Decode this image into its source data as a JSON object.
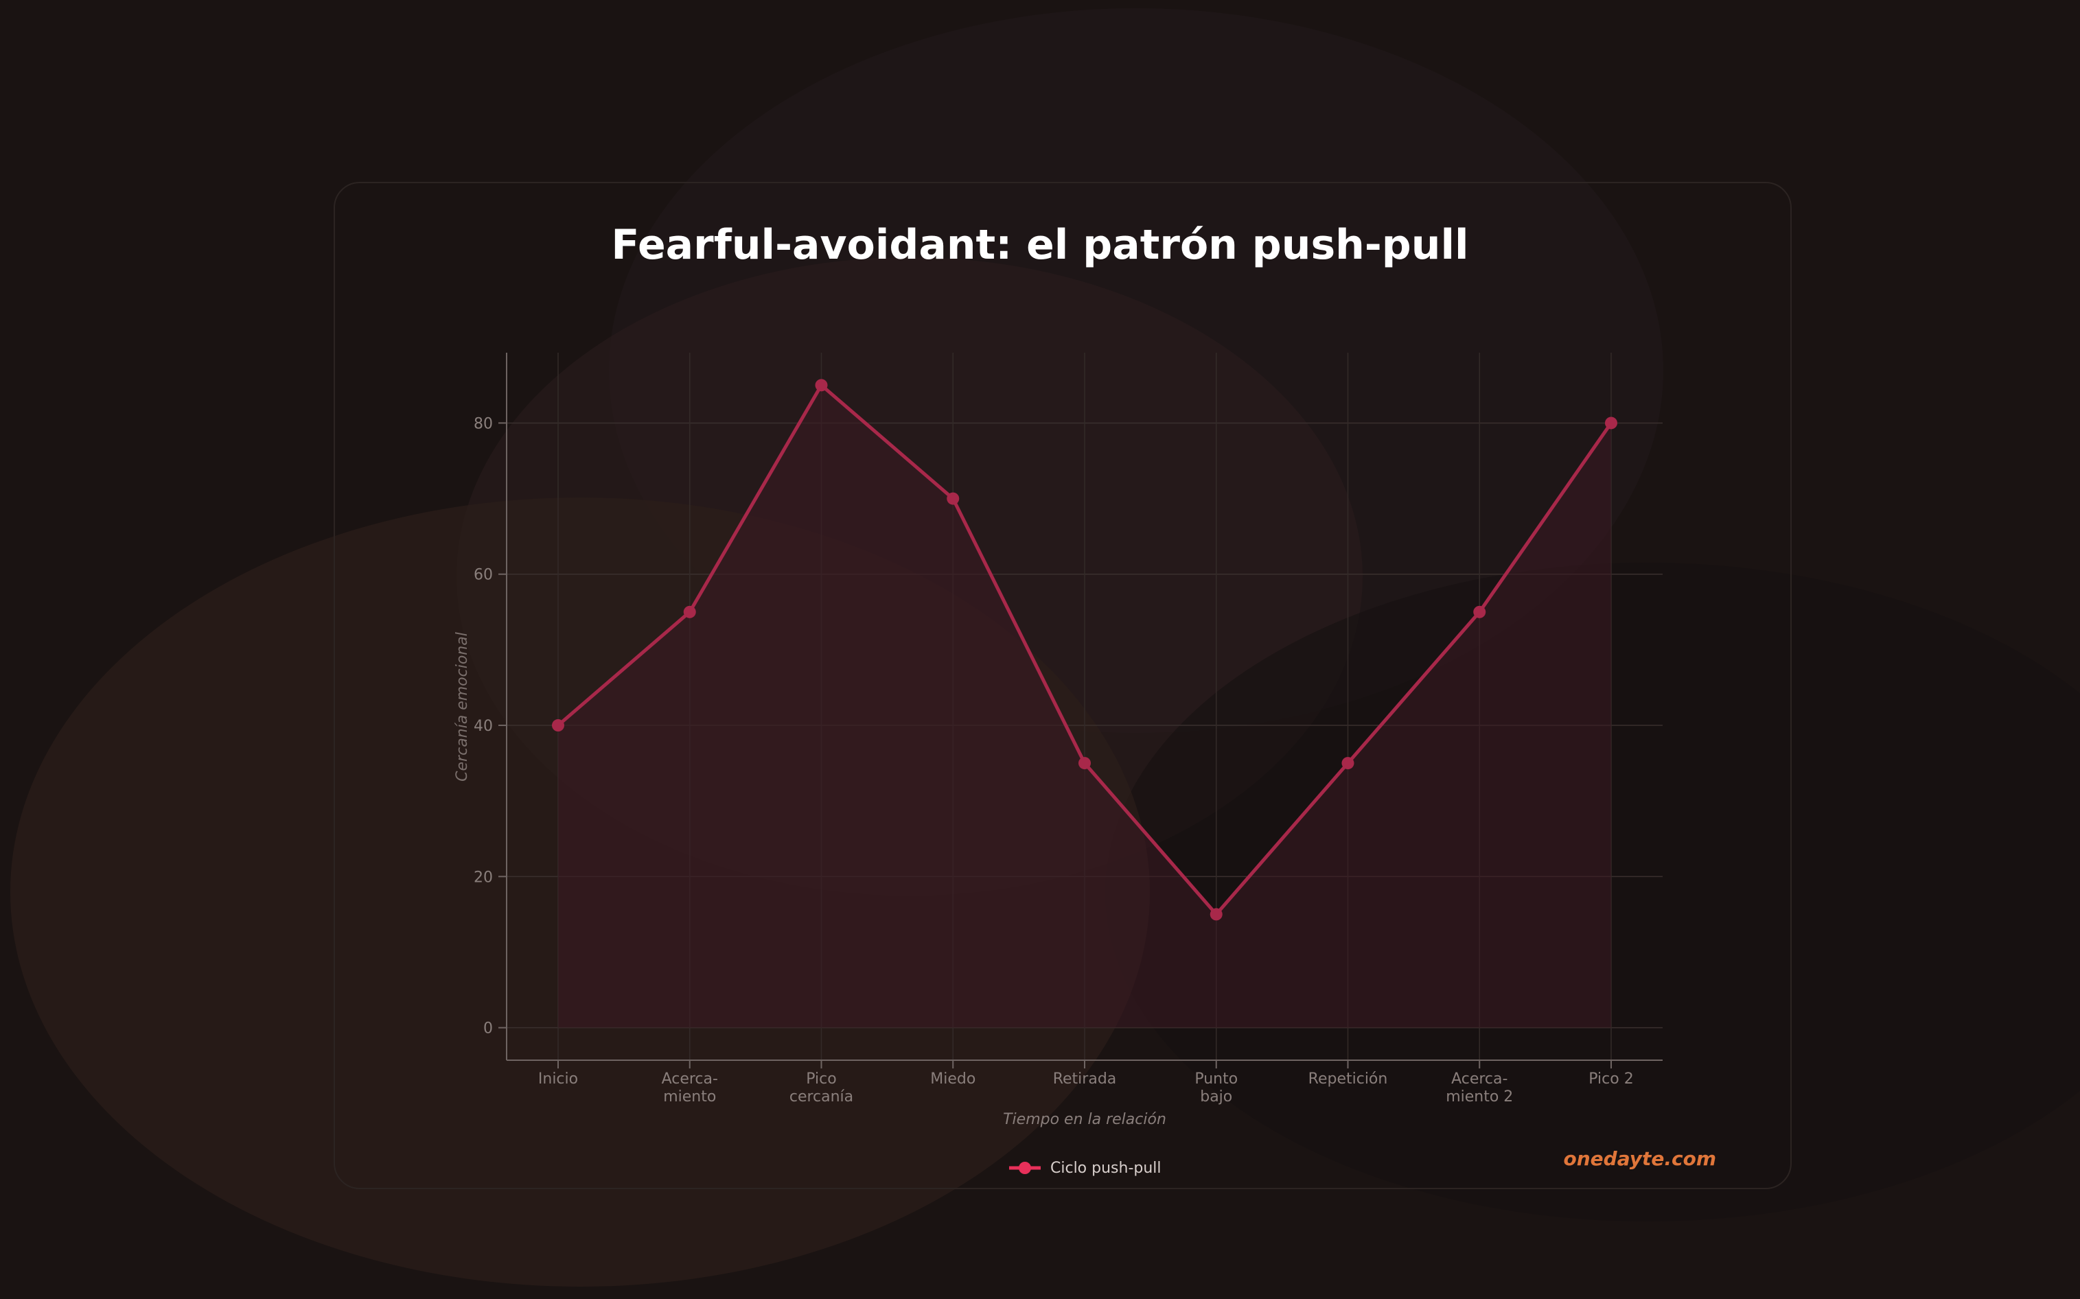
{
  "chart_data": {
    "type": "line",
    "title": "Fearful-avoidant: el patrón push-pull",
    "xlabel": "Tiempo en la relación",
    "ylabel": "Cercanía emocional",
    "categories": [
      [
        "Inicio"
      ],
      [
        "Acerca-",
        "miento"
      ],
      [
        "Pico",
        "cercanía"
      ],
      [
        "Miedo"
      ],
      [
        "Retirada"
      ],
      [
        "Punto",
        "bajo"
      ],
      [
        "Repetición"
      ],
      [
        "Acerca-",
        "miento 2"
      ],
      [
        "Pico 2"
      ]
    ],
    "series": [
      {
        "name": "Ciclo push-pull",
        "values": [
          40,
          55,
          85,
          70,
          35,
          15,
          35,
          55,
          80
        ]
      }
    ],
    "ylim": [
      -4.3,
      89.3
    ],
    "yticks": [
      0,
      20,
      40,
      60,
      80
    ],
    "grid": true,
    "legend": "bottom-center",
    "colors": {
      "line": "#a8284a",
      "point": "#a8284a",
      "fill": "#3a1a22",
      "legend_marker": "#e8305a",
      "brand": "#e0763a"
    }
  },
  "brand": "onedayte.com"
}
